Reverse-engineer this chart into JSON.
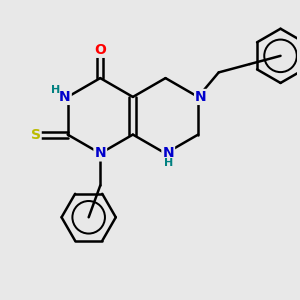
{
  "bg_color": "#e8e8e8",
  "bond_color": "#000000",
  "bond_width": 1.8,
  "atom_colors": {
    "N": "#0000cc",
    "O": "#ff0000",
    "S": "#bbbb00",
    "H_label": "#008080"
  },
  "font_size_atom": 10,
  "font_size_H": 8,
  "u": 0.55
}
